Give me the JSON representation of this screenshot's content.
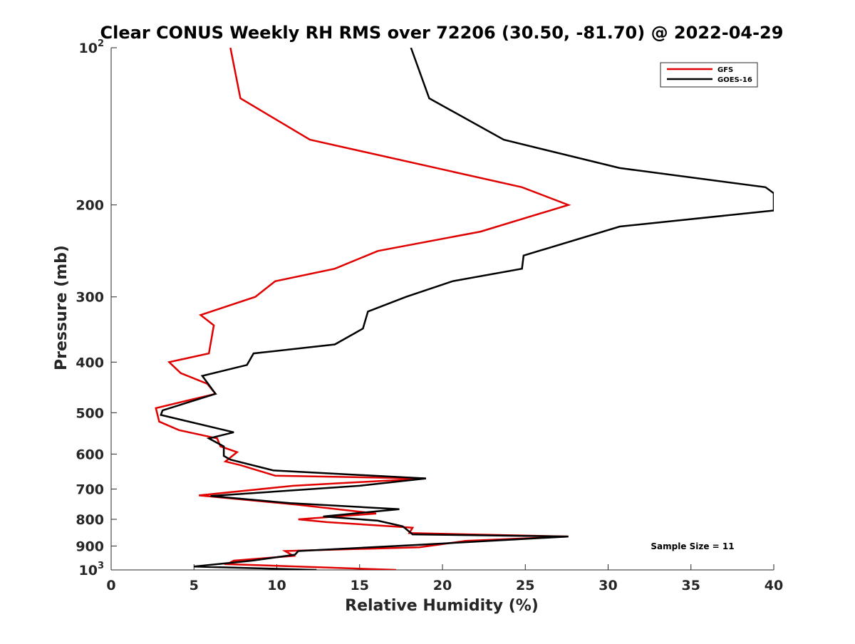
{
  "chart_data": {
    "type": "line",
    "title": "Clear CONUS Weekly RH RMS over 72206 (30.50, -81.70) @ 2022-04-29",
    "xlabel": "Relative Humidity (%)",
    "ylabel": "Pressure (mb)",
    "xlim": [
      0,
      40
    ],
    "ylim": [
      100,
      1000
    ],
    "y_scale": "log",
    "y_reversed": true,
    "grid": false,
    "legend_position": "top-right",
    "x_ticks": [
      0,
      5,
      10,
      15,
      20,
      25,
      30,
      35,
      40
    ],
    "x_tick_labels": [
      "0",
      "5",
      "10",
      "15",
      "20",
      "25",
      "30",
      "35",
      "40"
    ],
    "y_ticks": [
      100,
      200,
      300,
      400,
      500,
      600,
      700,
      800,
      900,
      1000
    ],
    "y_tick_labels": [
      "10^2",
      "200",
      "300",
      "400",
      "500",
      "600",
      "700",
      "800",
      "900",
      "10^3"
    ],
    "annotation": "Sample Size = 11",
    "series": [
      {
        "name": "GFS",
        "color": "#e00000",
        "points": [
          [
            7.2,
            100
          ],
          [
            7.8,
            125
          ],
          [
            12.0,
            150
          ],
          [
            24.8,
            185
          ],
          [
            27.6,
            200
          ],
          [
            22.3,
            225
          ],
          [
            16.1,
            245
          ],
          [
            13.5,
            265
          ],
          [
            9.9,
            280
          ],
          [
            8.7,
            300
          ],
          [
            5.4,
            325
          ],
          [
            6.2,
            340
          ],
          [
            5.9,
            385
          ],
          [
            3.5,
            400
          ],
          [
            4.2,
            420
          ],
          [
            5.8,
            440
          ],
          [
            6.3,
            460
          ],
          [
            2.7,
            490
          ],
          [
            2.9,
            520
          ],
          [
            4.1,
            540
          ],
          [
            6.4,
            560
          ],
          [
            6.6,
            580
          ],
          [
            7.6,
            595
          ],
          [
            6.9,
            620
          ],
          [
            7.8,
            630
          ],
          [
            9.9,
            660
          ],
          [
            19.0,
            668
          ],
          [
            11.0,
            690
          ],
          [
            5.3,
            720
          ],
          [
            11.2,
            750
          ],
          [
            16.0,
            780
          ],
          [
            11.3,
            800
          ],
          [
            13.0,
            810
          ],
          [
            18.2,
            830
          ],
          [
            18.0,
            850
          ],
          [
            27.6,
            863
          ],
          [
            21.4,
            880
          ],
          [
            18.6,
            905
          ],
          [
            10.5,
            920
          ],
          [
            11.0,
            940
          ],
          [
            7.4,
            960
          ],
          [
            7.0,
            975
          ],
          [
            17.2,
            1000
          ]
        ]
      },
      {
        "name": "GOES-16",
        "color": "#000000",
        "points": [
          [
            18.1,
            100
          ],
          [
            19.2,
            125
          ],
          [
            23.7,
            150
          ],
          [
            30.7,
            170
          ],
          [
            39.5,
            185
          ],
          [
            40.0,
            190
          ],
          [
            40.0,
            205
          ],
          [
            30.7,
            220
          ],
          [
            24.9,
            250
          ],
          [
            24.8,
            265
          ],
          [
            20.6,
            280
          ],
          [
            17.8,
            300
          ],
          [
            15.5,
            320
          ],
          [
            15.2,
            345
          ],
          [
            13.5,
            370
          ],
          [
            8.6,
            385
          ],
          [
            8.2,
            405
          ],
          [
            5.5,
            425
          ],
          [
            6.3,
            460
          ],
          [
            3.1,
            495
          ],
          [
            3.0,
            505
          ],
          [
            7.4,
            545
          ],
          [
            5.9,
            560
          ],
          [
            6.8,
            580
          ],
          [
            6.8,
            605
          ],
          [
            7.2,
            615
          ],
          [
            9.8,
            645
          ],
          [
            19.0,
            668
          ],
          [
            15.0,
            690
          ],
          [
            6.0,
            722
          ],
          [
            10.8,
            745
          ],
          [
            17.4,
            765
          ],
          [
            12.8,
            790
          ],
          [
            16.1,
            805
          ],
          [
            17.6,
            825
          ],
          [
            18.2,
            855
          ],
          [
            27.6,
            863
          ],
          [
            18.6,
            895
          ],
          [
            11.3,
            920
          ],
          [
            11.1,
            935
          ],
          [
            8.5,
            960
          ],
          [
            5.0,
            985
          ],
          [
            12.4,
            1000
          ]
        ]
      }
    ]
  }
}
